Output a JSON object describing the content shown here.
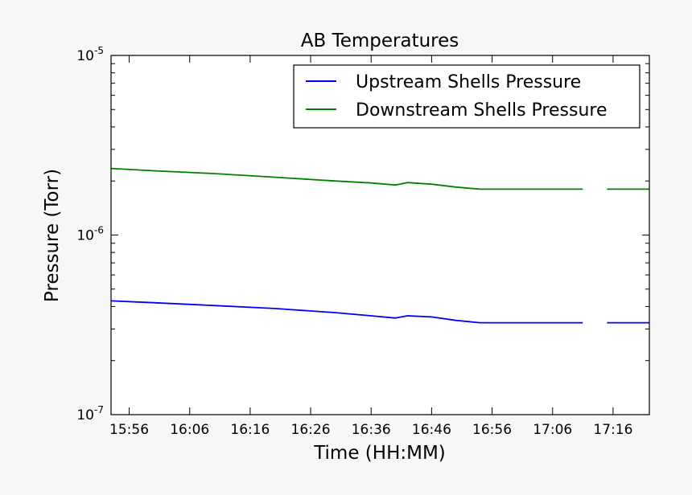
{
  "chart_data": {
    "type": "line",
    "title": "AB Temperatures",
    "xlabel": "Time (HH:MM)",
    "ylabel": "Pressure (Torr)",
    "y_scale": "log",
    "ylim": [
      1e-07,
      1e-05
    ],
    "xlim": [
      "15:53",
      "17:22"
    ],
    "x_ticks": [
      "15:56",
      "16:06",
      "16:16",
      "16:26",
      "16:36",
      "16:46",
      "16:56",
      "17:06",
      "17:16"
    ],
    "y_ticks": [
      {
        "base": "10",
        "exp": "-5",
        "value": 1e-05
      },
      {
        "base": "10",
        "exp": "-6",
        "value": 1e-06
      },
      {
        "base": "10",
        "exp": "-7",
        "value": 1e-07
      }
    ],
    "legend_position": "top-right",
    "grid": false,
    "series": [
      {
        "name": "Upstream Shells Pressure",
        "color": "#0000ff",
        "points": [
          [
            "15:53",
            4.3e-07
          ],
          [
            "16:00",
            4.2e-07
          ],
          [
            "16:10",
            4.05e-07
          ],
          [
            "16:20",
            3.9e-07
          ],
          [
            "16:30",
            3.7e-07
          ],
          [
            "16:36",
            3.55e-07
          ],
          [
            "16:40",
            3.45e-07
          ],
          [
            "16:42",
            3.55e-07
          ],
          [
            "16:46",
            3.5e-07
          ],
          [
            "16:50",
            3.35e-07
          ],
          [
            "16:54",
            3.25e-07
          ],
          [
            "17:00",
            3.25e-07
          ],
          [
            "17:06",
            3.25e-07
          ],
          [
            "17:11",
            3.25e-07
          ],
          null,
          [
            "17:15",
            3.25e-07
          ],
          [
            "17:22",
            3.25e-07
          ]
        ]
      },
      {
        "name": "Downstream Shells Pressure",
        "color": "#008000",
        "points": [
          [
            "15:53",
            2.35e-06
          ],
          [
            "16:00",
            2.28e-06
          ],
          [
            "16:10",
            2.2e-06
          ],
          [
            "16:20",
            2.1e-06
          ],
          [
            "16:30",
            2e-06
          ],
          [
            "16:36",
            1.95e-06
          ],
          [
            "16:40",
            1.9e-06
          ],
          [
            "16:42",
            1.96e-06
          ],
          [
            "16:46",
            1.92e-06
          ],
          [
            "16:50",
            1.85e-06
          ],
          [
            "16:54",
            1.8e-06
          ],
          [
            "17:00",
            1.8e-06
          ],
          [
            "17:06",
            1.8e-06
          ],
          [
            "17:11",
            1.8e-06
          ],
          null,
          [
            "17:15",
            1.8e-06
          ],
          [
            "17:22",
            1.8e-06
          ]
        ]
      }
    ]
  }
}
